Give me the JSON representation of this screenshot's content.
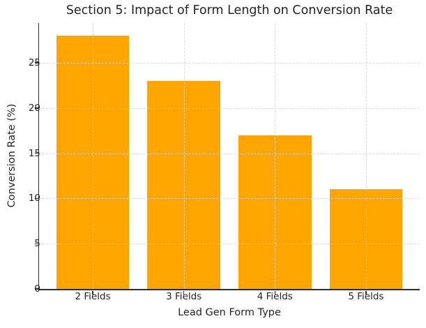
{
  "chart_data": {
    "type": "bar",
    "title": "Section 5: Impact of Form Length on Conversion Rate",
    "xlabel": "Lead Gen Form Type",
    "ylabel": "Conversion Rate (%)",
    "categories": [
      "2 Fields",
      "3 Fields",
      "4 Fields",
      "5 Fields"
    ],
    "values": [
      28,
      23,
      17,
      11
    ],
    "yticks": [
      0,
      5,
      10,
      15,
      20,
      25
    ],
    "ylim": [
      0,
      29.4
    ],
    "bar_color": "#FFA500",
    "grid": "dashed, drawn above bars",
    "legend": "none",
    "text_color": "#232323",
    "axis_color": "#2b2b2b"
  }
}
